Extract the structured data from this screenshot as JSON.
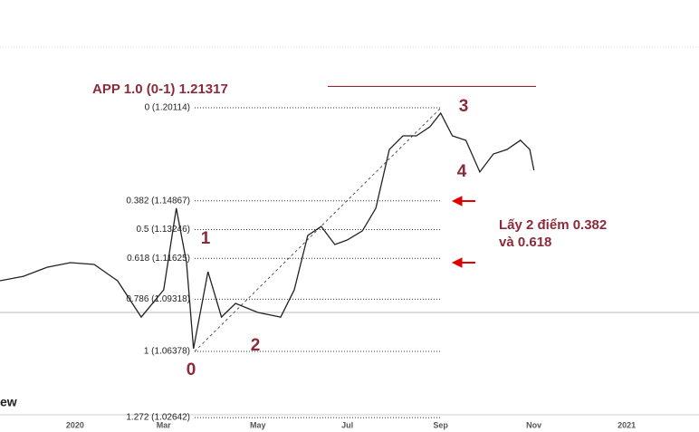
{
  "chart_data": {
    "type": "line",
    "x": [
      -1.61,
      -1.11,
      -0.6,
      -0.1,
      0.41,
      0.91,
      1.42,
      1.9,
      2.17,
      2.39,
      2.54,
      2.85,
      3.14,
      3.44,
      3.92,
      4.41,
      4.7,
      4.99,
      5.28,
      5.57,
      5.84,
      6.16,
      6.45,
      6.74,
      7.03,
      7.32,
      7.61,
      7.84,
      8.09,
      8.38,
      8.68,
      8.97,
      9.26,
      9.55,
      9.75,
      9.84
    ],
    "values": [
      1.1036,
      1.1061,
      1.1112,
      1.1138,
      1.1128,
      1.1036,
      1.0831,
      1.0985,
      1.1445,
      1.1138,
      1.0653,
      1.1087,
      1.0831,
      1.0908,
      1.0857,
      1.0831,
      1.0985,
      1.1291,
      1.1342,
      1.124,
      1.1266,
      1.1317,
      1.1445,
      1.1776,
      1.1853,
      1.1853,
      1.1904,
      1.1981,
      1.1853,
      1.1828,
      1.1649,
      1.1751,
      1.1776,
      1.1828,
      1.1776,
      1.1659
    ],
    "color": "#222222",
    "xlim": [
      -1.61,
      13.38
    ],
    "ylim": [
      1.028,
      1.2619
    ],
    "xticks": [
      {
        "value": 0,
        "label": "2020"
      },
      {
        "value": 1.9,
        "label": "Mar"
      },
      {
        "value": 3.92,
        "label": "May"
      },
      {
        "value": 5.84,
        "label": "Jul"
      },
      {
        "value": 7.84,
        "label": "Sep"
      },
      {
        "value": 9.84,
        "label": "Nov"
      },
      {
        "value": 11.83,
        "label": "2021"
      }
    ],
    "fib_levels": [
      {
        "label": "0 (1.20114)",
        "value": 1.20114
      },
      {
        "label": "0.382 (1.14867)",
        "value": 1.14867
      },
      {
        "label": "0.5 (1.13246)",
        "value": 1.13246
      },
      {
        "label": "0.618 (1.11625)",
        "value": 1.11625
      },
      {
        "label": "0.786 (1.09318)",
        "value": 1.09318
      },
      {
        "label": "1 (1.06378)",
        "value": 1.06378
      },
      {
        "label": "1.272 (1.02642)",
        "value": 1.02642
      }
    ],
    "app_level": {
      "label": "APP 1.0 (0-1) 1.21317",
      "value": 1.21317
    },
    "wave_labels": [
      "0",
      "1",
      "2",
      "3",
      "4"
    ],
    "note": [
      "Lấy 2 điểm 0.382",
      "và 0.618"
    ],
    "corner_text": "ew"
  }
}
